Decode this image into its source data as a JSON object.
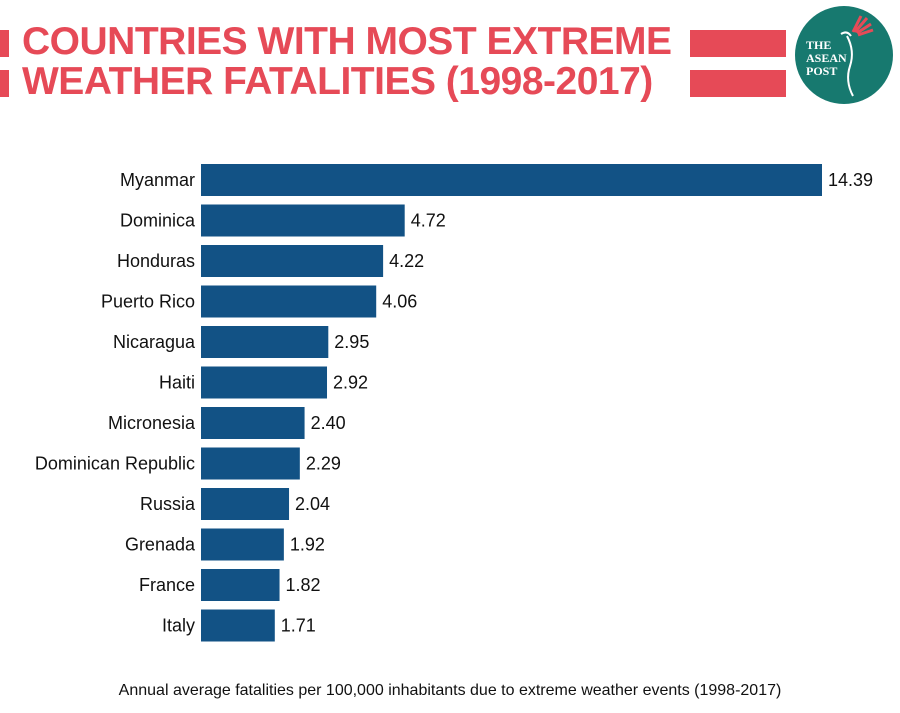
{
  "header": {
    "title_line1": "COUNTRIES WITH MOST EXTREME",
    "title_line2": "WEATHER FATALITIES (1998-2017)",
    "logo_text": [
      "THE",
      "ASEAN",
      "POST"
    ]
  },
  "colors": {
    "bar": "#125285",
    "accent": "#e64a57",
    "logo": "#17796f"
  },
  "chart_data": {
    "type": "bar",
    "orientation": "horizontal",
    "title": "COUNTRIES WITH MOST EXTREME WEATHER FATALITIES (1998-2017)",
    "categories": [
      "Myanmar",
      "Dominica",
      "Honduras",
      "Puerto Rico",
      "Nicaragua",
      "Haiti",
      "Micronesia",
      "Dominican Republic",
      "Russia",
      "Grenada",
      "France",
      "Italy"
    ],
    "values": [
      14.39,
      4.72,
      4.22,
      4.06,
      2.95,
      2.92,
      2.4,
      2.29,
      2.04,
      1.92,
      1.82,
      1.71
    ],
    "value_labels": [
      "14.39",
      "4.72",
      "4.22",
      "4.06",
      "2.95",
      "2.92",
      "2.40",
      "2.29",
      "2.04",
      "1.92",
      "1.82",
      "1.71"
    ],
    "xlabel": "Annual average fatalities per 100,000 inhabitants due to extreme weather events (1998-2017)",
    "xlim": [
      0,
      14.39
    ],
    "grid": false
  }
}
